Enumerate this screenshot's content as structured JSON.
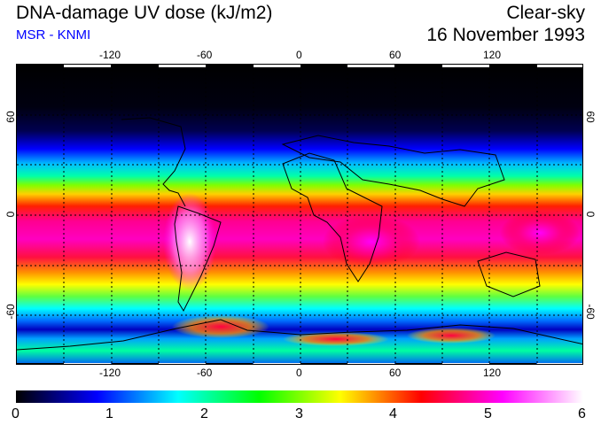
{
  "header": {
    "title": "DNA-damage UV dose (kJ/m2)",
    "subtitle": "MSR - KNMI",
    "sky_condition": "Clear-sky",
    "date": "16 November 1993"
  },
  "map": {
    "projection": "equirectangular",
    "lon_range": [
      -180,
      180
    ],
    "lat_range": [
      -90,
      90
    ],
    "top_lon_ticks": [
      "-120",
      "-60",
      "0",
      "60",
      "120"
    ],
    "bottom_lon_ticks": [
      "-120",
      "-60",
      "0",
      "60",
      "120"
    ],
    "left_lat_ticks": [
      "60",
      "0",
      "-60"
    ],
    "right_lat_ticks": [
      "60",
      "0",
      "-60"
    ]
  },
  "colorbar": {
    "min": 0,
    "max": 6,
    "labels": [
      "0",
      "1",
      "2",
      "3",
      "4",
      "5",
      "6"
    ],
    "colors": [
      "#000000",
      "#0000ff",
      "#00ffff",
      "#00ff00",
      "#ffff00",
      "#ff0000",
      "#ff00ff",
      "#ffffff"
    ]
  }
}
